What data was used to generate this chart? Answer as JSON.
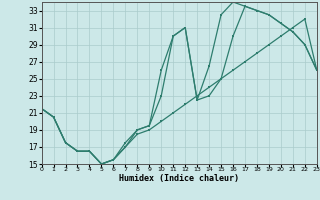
{
  "xlabel": "Humidex (Indice chaleur)",
  "bg_color": "#cce8e8",
  "line_color": "#2e7d6e",
  "grid_color": "#aacccc",
  "xlim": [
    0,
    23
  ],
  "ylim": [
    15,
    34
  ],
  "xticks": [
    0,
    1,
    2,
    3,
    4,
    5,
    6,
    7,
    8,
    9,
    10,
    11,
    12,
    13,
    14,
    15,
    16,
    17,
    18,
    19,
    20,
    21,
    22,
    23
  ],
  "yticks": [
    15,
    17,
    19,
    21,
    23,
    25,
    27,
    29,
    31,
    33
  ],
  "line1_x": [
    0,
    1,
    2,
    3,
    4,
    5,
    6,
    7,
    8,
    9,
    10,
    11,
    12,
    13,
    14,
    15,
    16,
    17,
    18,
    19,
    20,
    21,
    22,
    23
  ],
  "line1_y": [
    21.5,
    20.5,
    17.5,
    16.5,
    16.5,
    15.0,
    15.5,
    17.5,
    19.0,
    19.5,
    23.0,
    30.0,
    31.0,
    22.5,
    26.5,
    32.5,
    34.0,
    33.5,
    33.0,
    32.5,
    31.5,
    30.5,
    29.0,
    26.0
  ],
  "line2_x": [
    0,
    1,
    2,
    3,
    4,
    5,
    6,
    7,
    8,
    9,
    10,
    11,
    12,
    13,
    14,
    15,
    16,
    17,
    18,
    19,
    20,
    21,
    22,
    23
  ],
  "line2_y": [
    21.5,
    20.5,
    17.5,
    16.5,
    16.5,
    15.0,
    15.5,
    17.0,
    19.0,
    19.5,
    26.0,
    30.0,
    31.0,
    22.5,
    23.0,
    25.0,
    30.0,
    33.5,
    33.0,
    32.5,
    31.5,
    30.5,
    29.0,
    26.0
  ],
  "line3_x": [
    0,
    1,
    2,
    3,
    4,
    5,
    6,
    7,
    8,
    9,
    10,
    11,
    12,
    13,
    14,
    15,
    16,
    17,
    18,
    19,
    20,
    21,
    22,
    23
  ],
  "line3_y": [
    21.5,
    20.5,
    17.5,
    16.5,
    16.5,
    15.0,
    15.5,
    17.0,
    18.5,
    19.0,
    20.0,
    21.0,
    22.0,
    23.0,
    24.0,
    25.0,
    26.0,
    27.0,
    28.0,
    29.0,
    30.0,
    31.0,
    32.0,
    26.0
  ]
}
